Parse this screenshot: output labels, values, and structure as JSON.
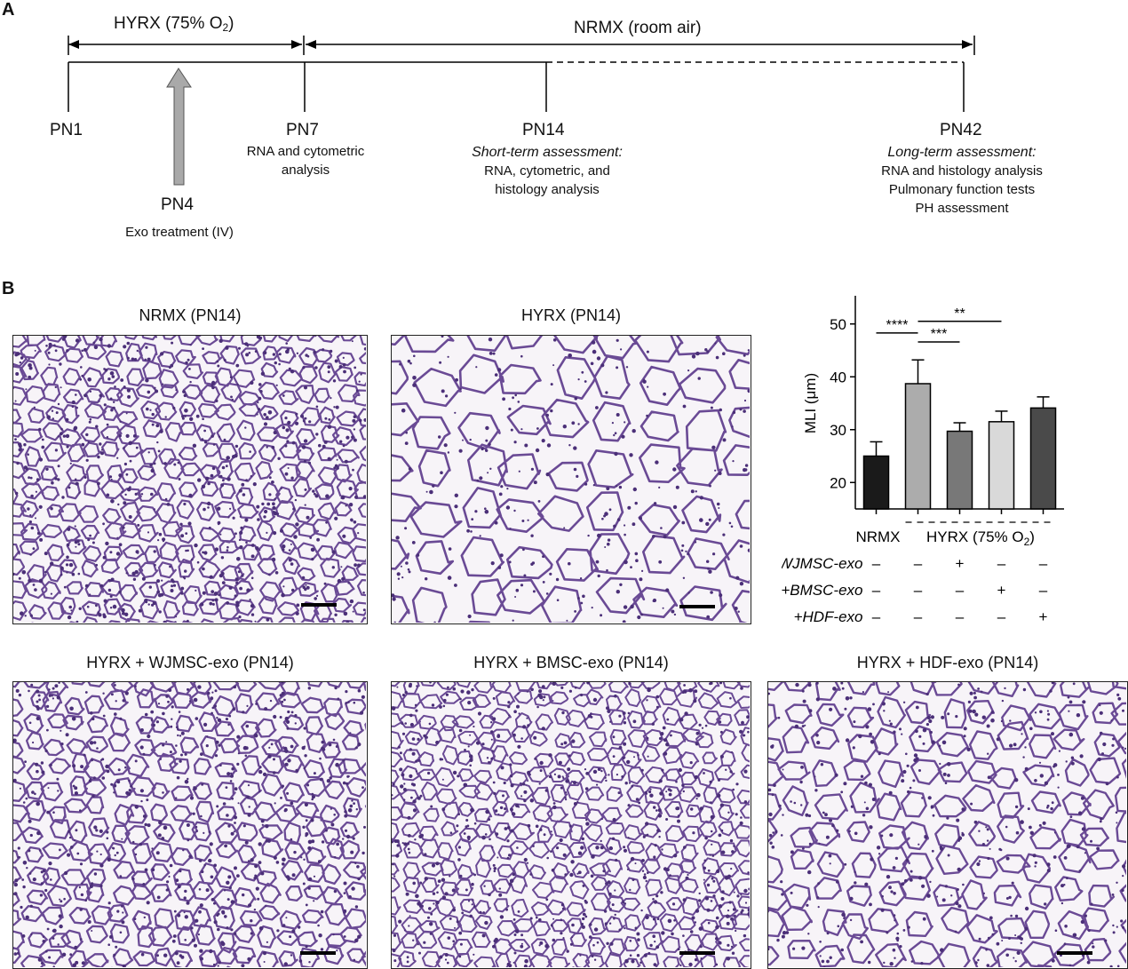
{
  "panels": {
    "a": "A",
    "b": "B"
  },
  "timeline": {
    "hyrx_label": "HYRX (75% O",
    "hyrx_sub": "2",
    "hyrx_close": ")",
    "nrmx_label": "NRMX (room air)",
    "pn1": "PN1",
    "pn4": "PN4",
    "pn4_desc": "Exo treatment (IV)",
    "pn7": "PN7",
    "pn7_desc1": "RNA and cytometric",
    "pn7_desc2": "analysis",
    "pn14": "PN14",
    "pn14_head": "Short-term assessment:",
    "pn14_desc1": "RNA, cytometric, and",
    "pn14_desc2": "histology analysis",
    "pn42": "PN42",
    "pn42_head": "Long-term assessment:",
    "pn42_desc1": "RNA and histology analysis",
    "pn42_desc2": "Pulmonary function tests",
    "pn42_desc3": "PH assessment"
  },
  "micrographs": [
    {
      "title": "NRMX (PN14)"
    },
    {
      "title": "HYRX (PN14)"
    },
    {
      "title": "HYRX + WJMSC-exo (PN14)"
    },
    {
      "title": "HYRX + BMSC-exo (PN14)"
    },
    {
      "title": "HYRX + HDF-exo (PN14)"
    }
  ],
  "chart_data": {
    "type": "bar",
    "ylabel": "MLI (μm)",
    "ylim": [
      15,
      55
    ],
    "yticks": [
      20,
      30,
      40,
      50
    ],
    "categories": [
      "NRMX",
      "HYRX",
      "HYRX+WJMSC-exo",
      "HYRX+BMSC-exo",
      "HYRX+HDF-exo"
    ],
    "values": [
      25.0,
      38.7,
      29.7,
      31.5,
      34.1
    ],
    "errors": [
      2.7,
      4.5,
      1.6,
      2.0,
      2.1
    ],
    "colors": [
      "#1a1a1a",
      "#acacac",
      "#787878",
      "#d9d9d9",
      "#4a4a4a"
    ],
    "significance": [
      {
        "from": 0,
        "to": 1,
        "label": "****"
      },
      {
        "from": 1,
        "to": 2,
        "label": "***"
      },
      {
        "from": 1,
        "to": 3,
        "label": "**"
      }
    ],
    "xgroup_labels": {
      "nrmx": "NRMX",
      "hyrx": "HYRX (75% O",
      "hyrx_sub": "2",
      "hyrx_close": ")"
    },
    "treatment_rows": [
      {
        "label": "+WJMSC-exo",
        "signs": [
          "–",
          "–",
          "+",
          "–",
          "–"
        ]
      },
      {
        "label": "+BMSC-exo",
        "signs": [
          "–",
          "–",
          "–",
          "+",
          "–"
        ]
      },
      {
        "label": "+HDF-exo",
        "signs": [
          "–",
          "–",
          "–",
          "–",
          "+"
        ]
      }
    ]
  }
}
